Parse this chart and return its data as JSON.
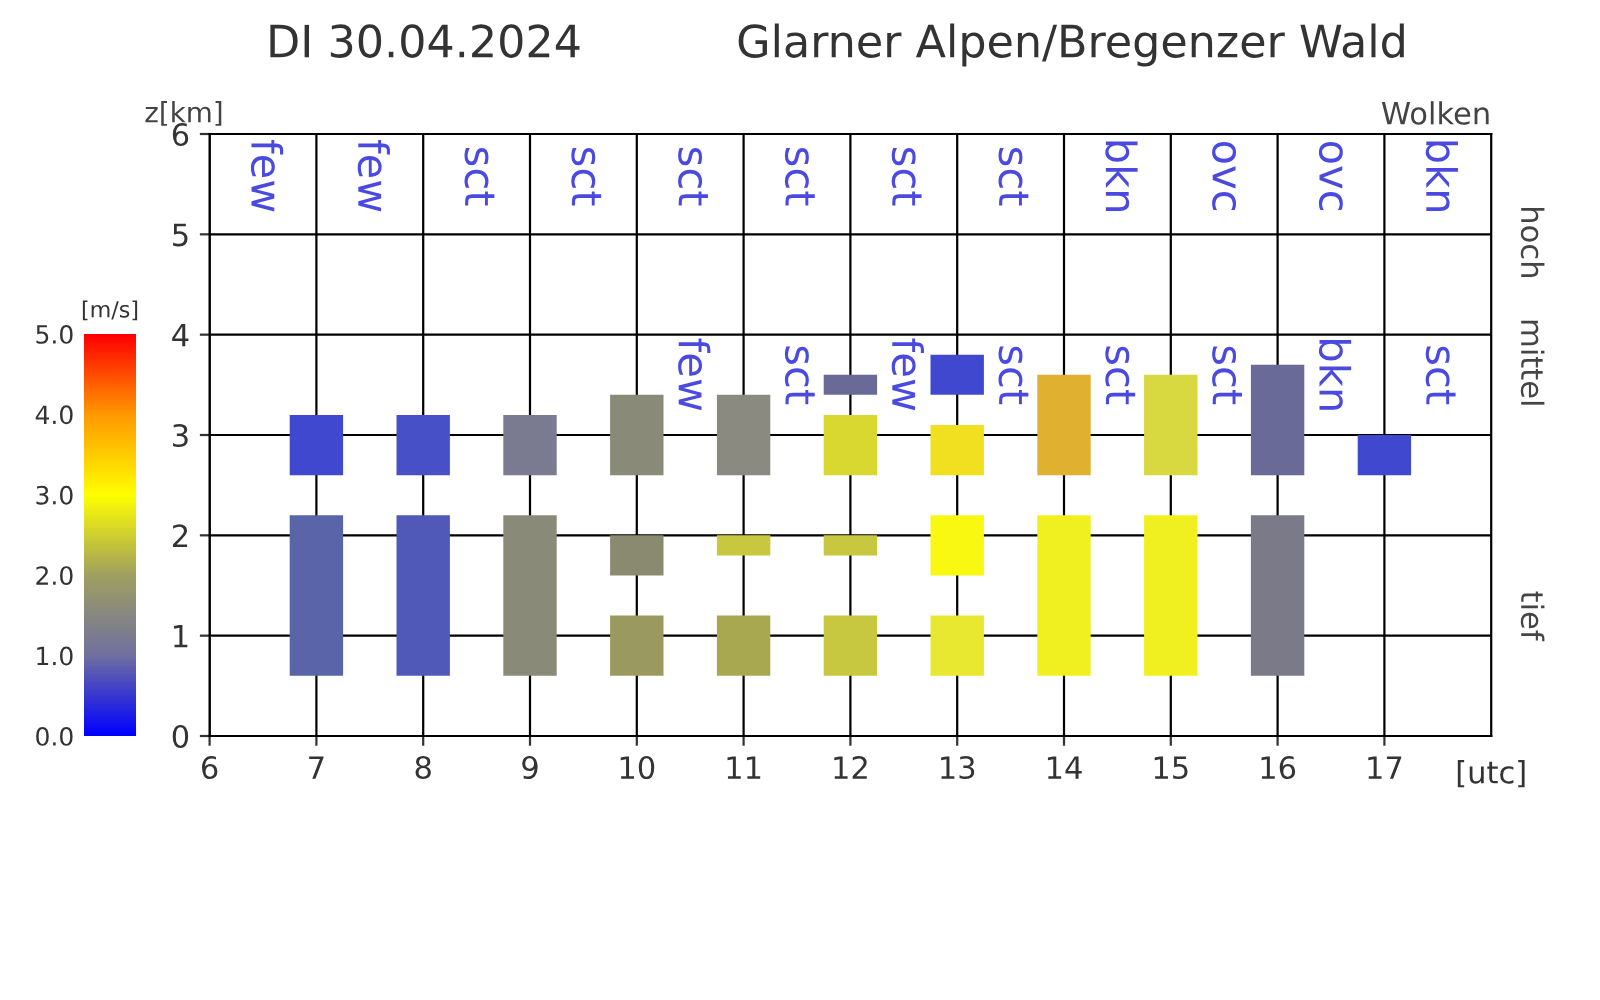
{
  "chart_data": {
    "type": "bar",
    "title": "DI 30.04.2024",
    "subtitle": "Glarner Alpen/Bregenzer Wald",
    "ylabel": "z[km]",
    "xlabel": "[utc]",
    "clabel": "[m/s]",
    "x": [
      7,
      8,
      9,
      10,
      11,
      12,
      13,
      14,
      15,
      16,
      17
    ],
    "series": [
      {
        "base": [
          0.6,
          0.6,
          0.6,
          0.6,
          0.6,
          0.6,
          0.6,
          0.6,
          0.6,
          0.6,
          null
        ],
        "values": [
          1.6,
          1.6,
          1.6,
          0.6,
          0.6,
          0.6,
          0.6,
          1.6,
          1.6,
          1.6,
          null
        ],
        "colors": [
          "#5a64a8",
          "#5058b8",
          "#8a8a78",
          "#9a9a60",
          "#a8a850",
          "#c8c840",
          "#e8e830",
          "#f0f020",
          "#f0f020",
          "#7a7a88",
          null
        ]
      },
      {
        "base": [
          null,
          null,
          null,
          1.6,
          1.8,
          1.8,
          1.6,
          null,
          null,
          null,
          null
        ],
        "values": [
          null,
          null,
          null,
          0.4,
          0.2,
          0.2,
          0.6,
          null,
          null,
          null,
          null
        ],
        "colors": [
          null,
          null,
          null,
          "#8a8a70",
          "#c8c840",
          "#c8c840",
          "#f8f810",
          null,
          null,
          null,
          null
        ]
      },
      {
        "base": [
          2.6,
          2.6,
          2.6,
          2.6,
          2.6,
          2.6,
          2.6,
          2.6,
          2.6,
          2.6,
          2.6
        ],
        "values": [
          0.6,
          0.6,
          0.6,
          0.8,
          0.8,
          0.6,
          0.5,
          1.0,
          1.0,
          1.1,
          0.4
        ],
        "colors": [
          "#4048d0",
          "#4850c8",
          "#7a7a90",
          "#8a8a78",
          "#8a8a80",
          "#d8d830",
          "#f0e020",
          "#e0b030",
          "#d8d840",
          "#6a6a98",
          "#4048d0"
        ]
      },
      {
        "base": [
          null,
          null,
          null,
          null,
          null,
          3.4,
          3.4,
          null,
          null,
          null,
          null
        ],
        "values": [
          null,
          null,
          null,
          null,
          null,
          0.2,
          0.4,
          null,
          null,
          null,
          null
        ],
        "colors": [
          null,
          null,
          null,
          null,
          null,
          "#6a6a98",
          "#4048d0",
          null,
          null,
          null,
          null
        ]
      }
    ],
    "xlim": [
      6,
      18
    ],
    "xticks": [
      6,
      7,
      8,
      9,
      10,
      11,
      12,
      13,
      14,
      15,
      16,
      17
    ],
    "ylim": [
      0,
      6
    ],
    "yticks": [
      0,
      1,
      2,
      3,
      4,
      5,
      6
    ],
    "clim": [
      0,
      5
    ],
    "cticks": [
      {
        "value": 0,
        "label": "0.0"
      },
      {
        "value": 1,
        "label": "1.0"
      },
      {
        "value": 2,
        "label": "2.0"
      },
      {
        "value": 3,
        "label": "3.0"
      },
      {
        "value": 4,
        "label": "4.0"
      },
      {
        "value": 5,
        "label": "5.0"
      }
    ],
    "grid": true,
    "annotations": [
      "Wolken",
      "hoch",
      "mittel",
      "tief",
      "few",
      "few",
      "sct",
      "sct",
      "sct",
      "sct",
      "sct",
      "sct",
      "bkn",
      "ovc",
      "ovc",
      "bkn",
      "few",
      "sct",
      "few",
      "sct",
      "sct",
      "sct",
      "bkn",
      "sct"
    ]
  }
}
